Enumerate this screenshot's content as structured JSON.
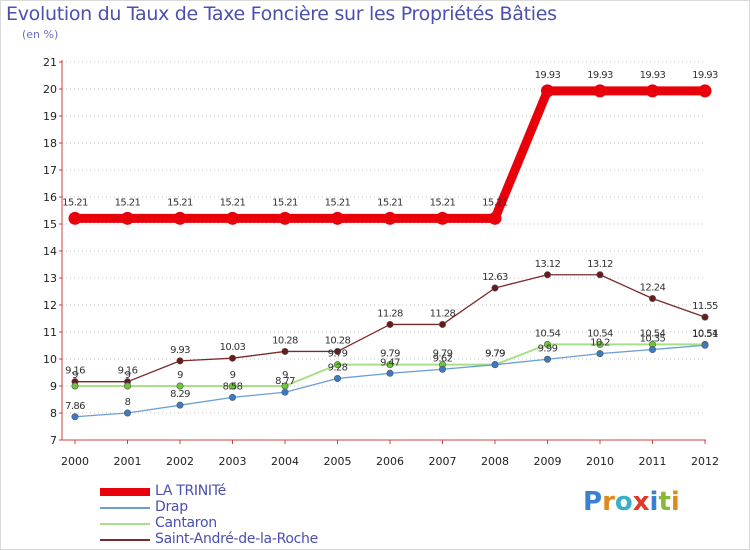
{
  "title": "Evolution du Taux de Taxe Foncière sur les Propriétés Bâties",
  "subtitle": "(en %)",
  "logo": {
    "text": "Proxiti",
    "letter_colors": [
      "#3a7fd0",
      "#e08a1e",
      "#3ab0c8",
      "#e03a2a",
      "#3a7fd0",
      "#8ab83a",
      "#e08a1e"
    ]
  },
  "chart_data": {
    "type": "line",
    "title": "Evolution du Taux de Taxe Foncière sur les Propriétés Bâties",
    "ylabel": "(en %)",
    "xlabel": "",
    "categories": [
      "2000",
      "2001",
      "2002",
      "2003",
      "2004",
      "2005",
      "2006",
      "2007",
      "2008",
      "2009",
      "2010",
      "2011",
      "2012"
    ],
    "ylim": [
      7,
      21
    ],
    "yticks": [
      7,
      8,
      9,
      10,
      11,
      12,
      13,
      14,
      15,
      16,
      17,
      18,
      19,
      20,
      21
    ],
    "grid": "horizontal-dotted",
    "series": [
      {
        "name": "LA TRINITé",
        "color": "#e8000b",
        "point_color": "#e8000b",
        "values": [
          15.21,
          15.21,
          15.21,
          15.21,
          15.21,
          15.21,
          15.21,
          15.21,
          15.21,
          19.93,
          19.93,
          19.93,
          19.93
        ],
        "labels": [
          "15.21",
          "15.21",
          "15.21",
          "15.21",
          "15.21",
          "15.21",
          "15.21",
          "15.21",
          "15.21",
          "19.93",
          "19.93",
          "19.93",
          "19.93"
        ]
      },
      {
        "name": "Drap",
        "color": "#6a9fd6",
        "point_color": "#3a7bc8",
        "values": [
          7.86,
          8,
          8.29,
          8.58,
          8.77,
          9.28,
          9.47,
          9.62,
          9.79,
          9.99,
          10.2,
          10.35,
          10.51
        ],
        "labels": [
          "7.86",
          "8",
          "8.29",
          "8.58",
          "8.77",
          "9.28",
          "9.47",
          "9.62",
          "9.79",
          "9.99",
          "10.2",
          "10.35",
          "10.51"
        ]
      },
      {
        "name": "Cantaron",
        "color": "#a8e08a",
        "point_color": "#6cc83a",
        "values": [
          9,
          9,
          9,
          9,
          9,
          9.79,
          9.79,
          9.79,
          9.79,
          10.54,
          10.54,
          10.54,
          10.54
        ],
        "labels": [
          "9",
          "9",
          "9",
          "9",
          "9",
          "9.79",
          "9.79",
          "9.79",
          "9.79",
          "10.54",
          "10.54",
          "10.54",
          "10.54"
        ]
      },
      {
        "name": "Saint-André-de-la-Roche",
        "color": "#7a2a2a",
        "point_color": "#6a1a1a",
        "values": [
          9.16,
          9.16,
          9.93,
          10.03,
          10.28,
          10.28,
          11.28,
          11.28,
          12.63,
          13.12,
          13.12,
          12.24,
          11.55
        ],
        "labels": [
          "9.16",
          "9.16",
          "9.93",
          "10.03",
          "10.28",
          "10.28",
          "11.28",
          "11.28",
          "12.63",
          "13.12",
          "13.12",
          "12.24",
          "11.55"
        ]
      }
    ]
  }
}
